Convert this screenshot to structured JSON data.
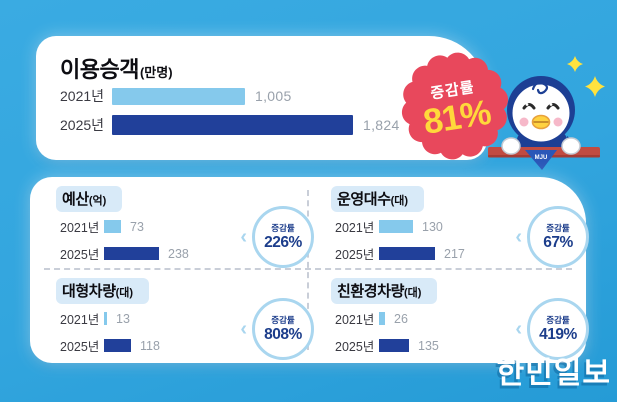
{
  "colors": {
    "background": "#32A5DE",
    "bar_light": "#85C9EC",
    "bar_dark": "#21409A",
    "badge_red": "#E8485C",
    "badge_yellow": "#FFD83B",
    "accent_navy": "#1C3D8B",
    "circle_ring": "#A9D6EF",
    "title_pill": "#D8EAF8",
    "ledge_red": "#C14B42"
  },
  "watermark": "한민일보",
  "main_chart": {
    "title": "이용승객",
    "unit": "(만명)",
    "badge_label": "증감률",
    "badge_percent": "81%",
    "rows": [
      {
        "label": "2021년",
        "value": "1,005",
        "num": 1005
      },
      {
        "label": "2025년",
        "value": "1,824",
        "num": 1824
      }
    ]
  },
  "quadrants": [
    {
      "title": "예산",
      "unit": "(억)",
      "badge_label": "증감률",
      "badge_percent": "226%",
      "rows": [
        {
          "label": "2021년",
          "value": "73",
          "num": 73
        },
        {
          "label": "2025년",
          "value": "238",
          "num": 238
        }
      ]
    },
    {
      "title": "운영대수",
      "unit": "(대)",
      "badge_label": "증감률",
      "badge_percent": "67%",
      "rows": [
        {
          "label": "2021년",
          "value": "130",
          "num": 130
        },
        {
          "label": "2025년",
          "value": "217",
          "num": 217
        }
      ]
    },
    {
      "title": "대형차량",
      "unit": "(대)",
      "badge_label": "증감률",
      "badge_percent": "808%",
      "rows": [
        {
          "label": "2021년",
          "value": "13",
          "num": 13
        },
        {
          "label": "2025년",
          "value": "118",
          "num": 118
        }
      ]
    },
    {
      "title": "친환경차량",
      "unit": "(대)",
      "badge_label": "증감률",
      "badge_percent": "419%",
      "rows": [
        {
          "label": "2021년",
          "value": "26",
          "num": 26
        },
        {
          "label": "2025년",
          "value": "135",
          "num": 135
        }
      ]
    }
  ],
  "mascot": {
    "scarf_text": "MJU"
  },
  "chevron": "‹",
  "chart_data": [
    {
      "type": "bar",
      "title": "이용승객",
      "unit": "만명",
      "categories": [
        "2021년",
        "2025년"
      ],
      "values": [
        1005,
        1824
      ],
      "change_rate": "81%",
      "bar_colors": [
        "#85C9EC",
        "#21409A"
      ],
      "orientation": "horizontal"
    },
    {
      "type": "bar",
      "title": "예산",
      "unit": "억",
      "categories": [
        "2021년",
        "2025년"
      ],
      "values": [
        73,
        238
      ],
      "change_rate": "226%",
      "bar_colors": [
        "#85C9EC",
        "#21409A"
      ],
      "orientation": "horizontal"
    },
    {
      "type": "bar",
      "title": "운영대수",
      "unit": "대",
      "categories": [
        "2021년",
        "2025년"
      ],
      "values": [
        130,
        217
      ],
      "change_rate": "67%",
      "bar_colors": [
        "#85C9EC",
        "#21409A"
      ],
      "orientation": "horizontal"
    },
    {
      "type": "bar",
      "title": "대형차량",
      "unit": "대",
      "categories": [
        "2021년",
        "2025년"
      ],
      "values": [
        13,
        118
      ],
      "change_rate": "808%",
      "bar_colors": [
        "#85C9EC",
        "#21409A"
      ],
      "orientation": "horizontal"
    },
    {
      "type": "bar",
      "title": "친환경차량",
      "unit": "대",
      "categories": [
        "2021년",
        "2025년"
      ],
      "values": [
        26,
        135
      ],
      "change_rate": "419%",
      "bar_colors": [
        "#85C9EC",
        "#21409A"
      ],
      "orientation": "horizontal"
    }
  ]
}
